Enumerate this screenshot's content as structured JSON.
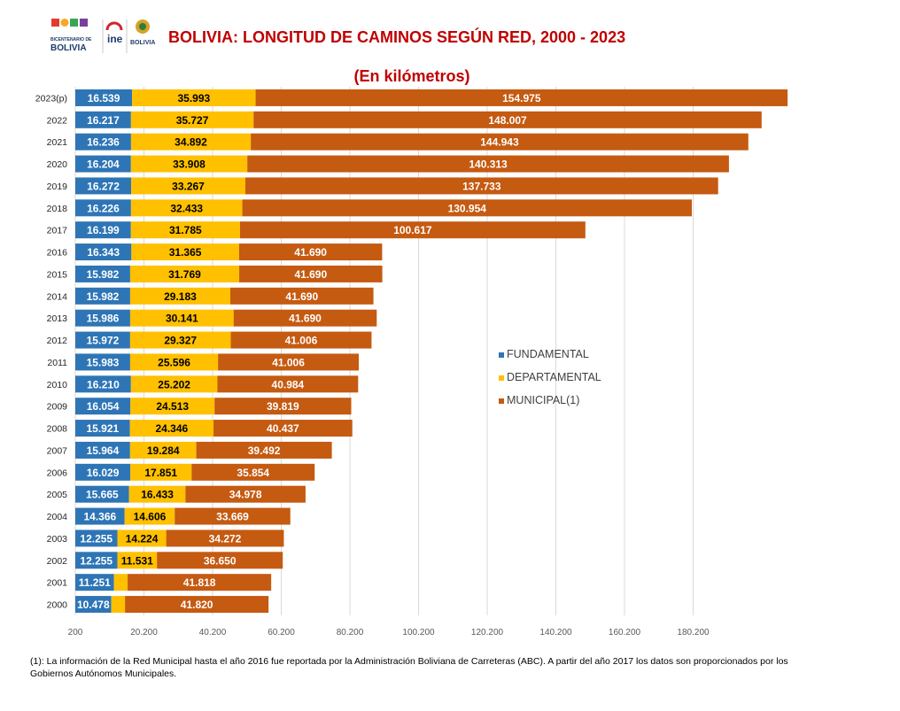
{
  "header": {
    "title": "BOLIVIA: LONGITUD DE CAMINOS SEGÚN RED, 2000 - 2023",
    "subtitle": "(En kilómetros)",
    "logo_bicentenario": "BOLIVIA",
    "logo_bicentenario_small": "BICENTENARIO DE",
    "logo_ine": "ine",
    "logo_gov": "BOLIVIA"
  },
  "footnote": "(1): La información de la Red Municipal hasta el año 2016 fue reportada por la Administración Boliviana de Carreteras (ABC). A partir del año 2017 los datos son proporcionados por los Gobiernos Autónomos Municipales.",
  "colors": {
    "fundamental": "#2e75b6",
    "departamental": "#ffc000",
    "municipal": "#c55a11",
    "title": "#c00000"
  },
  "chart_data": {
    "type": "bar",
    "orientation": "horizontal",
    "stacked": true,
    "categories": [
      "2023(p)",
      "2022",
      "2021",
      "2020",
      "2019",
      "2018",
      "2017",
      "2016",
      "2015",
      "2014",
      "2013",
      "2012",
      "2011",
      "2010",
      "2009",
      "2008",
      "2007",
      "2006",
      "2005",
      "2004",
      "2003",
      "2002",
      "2001",
      "2000"
    ],
    "series": [
      {
        "name": "FUNDAMENTAL",
        "values": [
          16539,
          16217,
          16236,
          16204,
          16272,
          16226,
          16199,
          16343,
          15982,
          15982,
          15986,
          15972,
          15983,
          16210,
          16054,
          15921,
          15964,
          16029,
          15665,
          14366,
          12255,
          12255,
          11251,
          10478
        ],
        "labels": [
          "16.539",
          "16.217",
          "16.236",
          "16.204",
          "16.272",
          "16.226",
          "16.199",
          "16.343",
          "15.982",
          "15.982",
          "15.986",
          "15.972",
          "15.983",
          "16.210",
          "16.054",
          "15.921",
          "15.964",
          "16.029",
          "15.665",
          "14.366",
          "12.255",
          "12.255",
          "11.251",
          "10.478"
        ]
      },
      {
        "name": "DEPARTAMENTAL",
        "values": [
          35993,
          35727,
          34892,
          33908,
          33267,
          32433,
          31785,
          31365,
          31769,
          29183,
          30141,
          29327,
          25596,
          25202,
          24513,
          24346,
          19284,
          17851,
          16433,
          14606,
          14224,
          11531,
          4000,
          4000
        ],
        "labels": [
          "35.993",
          "35.727",
          "34.892",
          "33.908",
          "33.267",
          "32.433",
          "31.785",
          "31.365",
          "31.769",
          "29.183",
          "30.141",
          "29.327",
          "25.596",
          "25.202",
          "24.513",
          "24.346",
          "19.284",
          "17.851",
          "16.433",
          "14.606",
          "14.224",
          "11.531",
          "",
          ""
        ]
      },
      {
        "name": "MUNICIPAL(1)",
        "values": [
          154975,
          148007,
          144943,
          140313,
          137733,
          130954,
          100617,
          41690,
          41690,
          41690,
          41690,
          41006,
          41006,
          40984,
          39819,
          40437,
          39492,
          35854,
          34978,
          33669,
          34272,
          36650,
          41818,
          41820
        ],
        "labels": [
          "154.975",
          "148.007",
          "144.943",
          "140.313",
          "137.733",
          "130.954",
          "100.617",
          "41.690",
          "41.690",
          "41.690",
          "41.690",
          "41.006",
          "41.006",
          "40.984",
          "39.819",
          "40.437",
          "39.492",
          "35.854",
          "34.978",
          "33.669",
          "34.272",
          "36.650",
          "41.818",
          "41.820"
        ]
      }
    ],
    "xlim": [
      200,
      200200
    ],
    "xticks": [
      200,
      20200,
      40200,
      60200,
      80200,
      100200,
      120200,
      140200,
      160200,
      180200
    ],
    "xtick_labels": [
      "200",
      "20.200",
      "40.200",
      "60.200",
      "80.200",
      "100.200",
      "120.200",
      "140.200",
      "160.200",
      "180.200"
    ],
    "grid": "vertical",
    "legend_position": "right"
  }
}
